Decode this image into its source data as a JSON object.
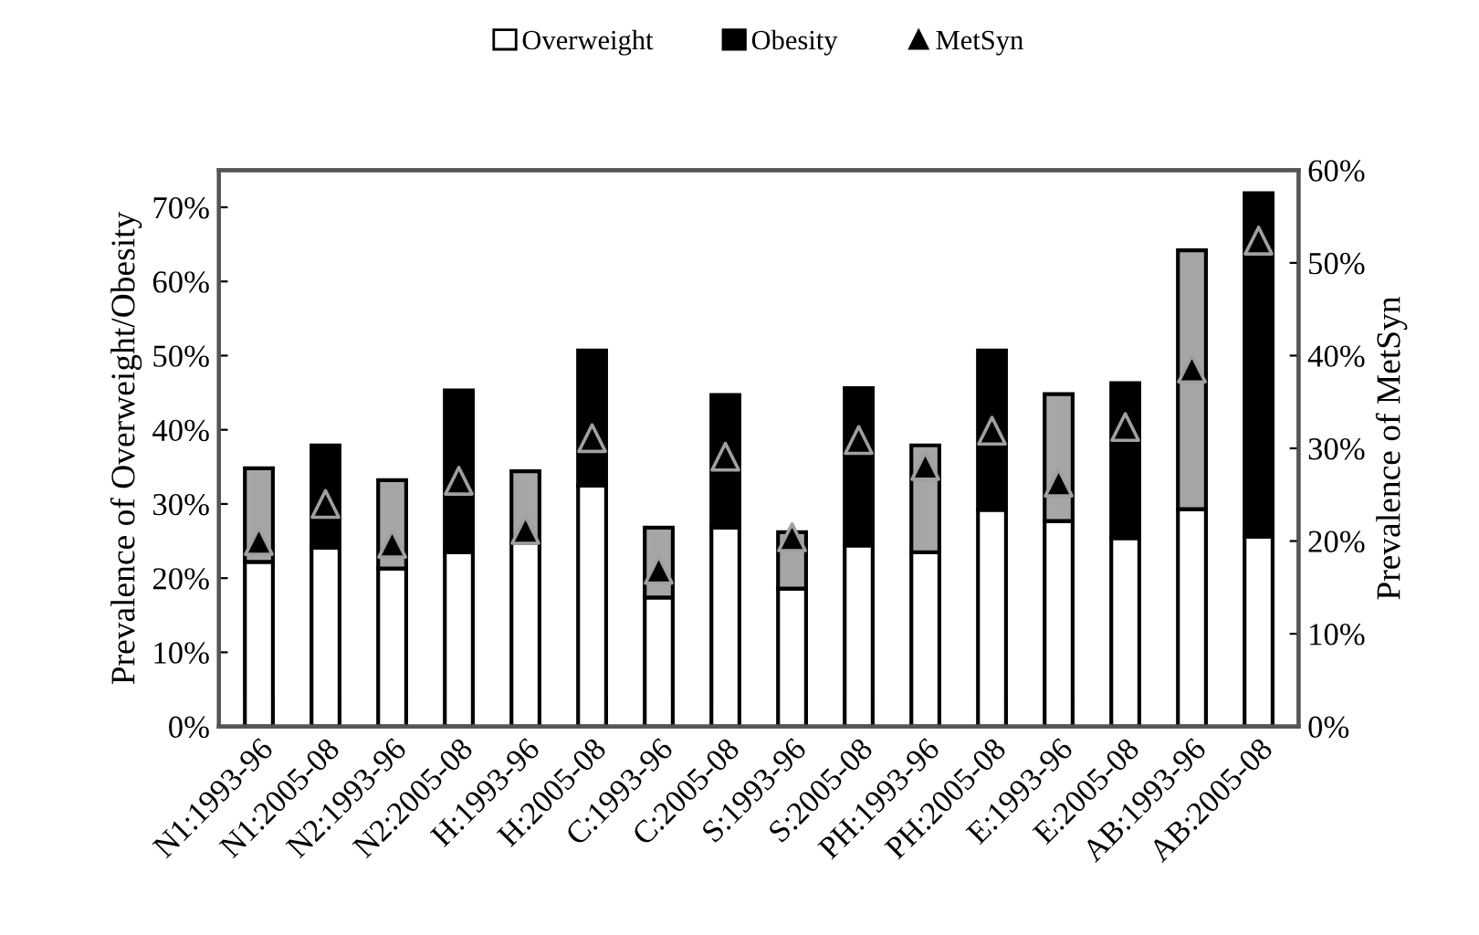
{
  "chart_data": {
    "type": "bar",
    "stacked": true,
    "ylabel": "Prevalence of Overweight/Obesity",
    "y2label": "Prevalence of MetSyn",
    "categories": [
      "N1:1993-96",
      "N1:2005-08",
      "N2:1993-96",
      "N2:2005-08",
      "H:1993-96",
      "H:2005-08",
      "C:1993-96",
      "C:2005-08",
      "S:1993-96",
      "S:2005-08",
      "PH:1993-96",
      "PH:2005-08",
      "E:1993-96",
      "E:2005-08",
      "AB:1993-96",
      "AB:2005-08"
    ],
    "series": [
      {
        "name": "Overweight",
        "color": "#ffffff",
        "values": [
          22.2,
          24.1,
          21.3,
          23.5,
          24.8,
          32.5,
          17.4,
          26.8,
          18.6,
          24.4,
          23.5,
          29.2,
          27.7,
          25.4,
          29.3,
          25.6
        ]
      },
      {
        "name": "Obesity",
        "color": "#000000",
        "colors": [
          "#a6a6a6",
          "#000000",
          "#a6a6a6",
          "#000000",
          "#a6a6a6",
          "#000000",
          "#a6a6a6",
          "#000000",
          "#a6a6a6",
          "#000000",
          "#a6a6a6",
          "#000000",
          "#a6a6a6",
          "#000000",
          "#a6a6a6",
          "#000000"
        ],
        "values": [
          12.6,
          13.8,
          11.9,
          21.8,
          9.6,
          18.2,
          9.4,
          17.9,
          7.6,
          21.2,
          14.4,
          21.5,
          17.1,
          20.9,
          34.9,
          46.3
        ]
      },
      {
        "name": "MetSyn",
        "type": "scatter",
        "axis": "y2",
        "color": "#000000",
        "marker": "triangle",
        "values": [
          20,
          24,
          19.7,
          26.5,
          21.2,
          31.1,
          16.9,
          29.1,
          20.4,
          30.9,
          28.1,
          31.9,
          26.3,
          32.3,
          38.6,
          52.4
        ]
      }
    ],
    "ylim": [
      0,
      75
    ],
    "yticks": [
      {
        "value": 0,
        "label": "0%"
      },
      {
        "value": 10,
        "label": "10%"
      },
      {
        "value": 20,
        "label": "20%"
      },
      {
        "value": 30,
        "label": "30%"
      },
      {
        "value": 40,
        "label": "40%"
      },
      {
        "value": 50,
        "label": "50%"
      },
      {
        "value": 60,
        "label": "60%"
      },
      {
        "value": 70,
        "label": "70%"
      }
    ],
    "y2lim": [
      0,
      60
    ],
    "y2ticks": [
      {
        "value": 0,
        "label": "0%"
      },
      {
        "value": 10,
        "label": "10%"
      },
      {
        "value": 20,
        "label": "20%"
      },
      {
        "value": 30,
        "label": "30%"
      },
      {
        "value": 40,
        "label": "40%"
      },
      {
        "value": 50,
        "label": "50%"
      },
      {
        "value": 60,
        "label": "60%"
      }
    ],
    "legend": "top",
    "grid": false
  }
}
